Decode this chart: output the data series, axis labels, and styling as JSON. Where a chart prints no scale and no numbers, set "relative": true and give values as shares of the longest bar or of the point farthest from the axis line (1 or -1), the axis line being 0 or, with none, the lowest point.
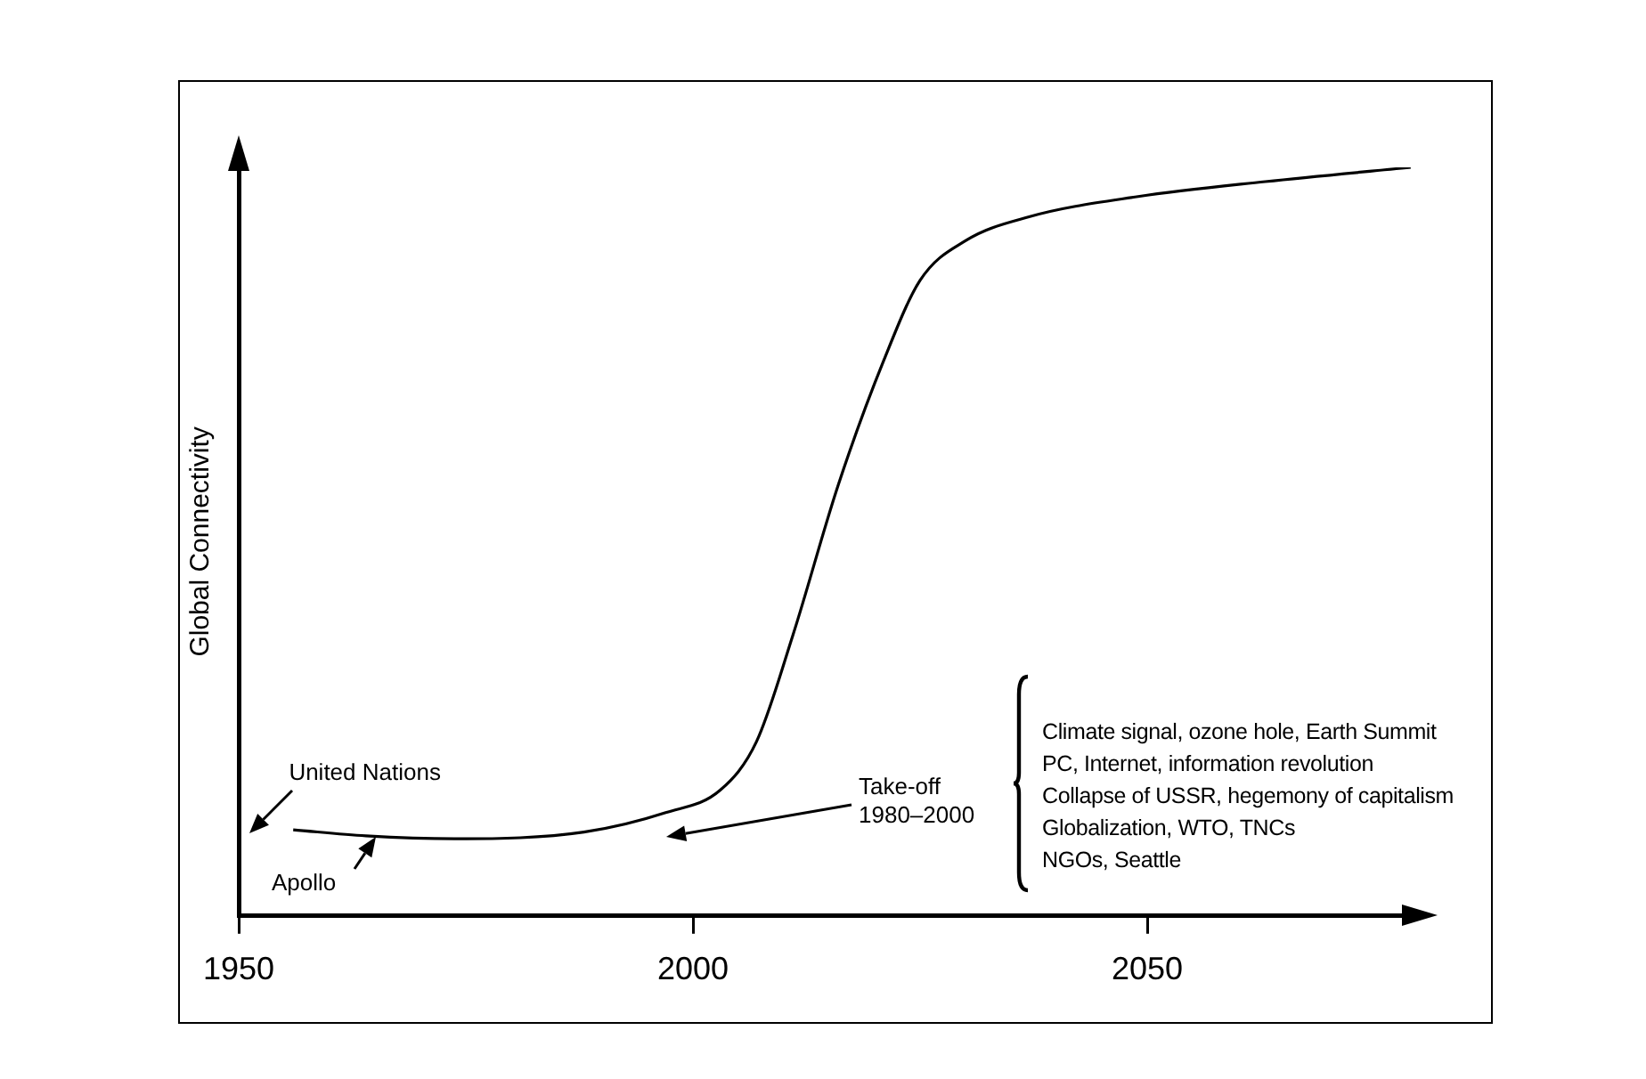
{
  "chart_data": {
    "type": "line",
    "relative": true,
    "ylabel": "Global Connectivity",
    "xlim": [
      1950,
      2080
    ],
    "xticks": [
      1950,
      2000,
      2050
    ],
    "grid": false,
    "legend": false,
    "marker": "none",
    "line_style": "solid",
    "series": [
      {
        "color": "#000000",
        "x": [
          1956,
          1964,
          1974,
          1988,
          1997,
          2003,
          2007,
          2011,
          2016,
          2021,
          2025,
          2030,
          2037,
          2049,
          2063,
          2079
        ],
        "values": [
          0.115,
          0.107,
          0.103,
          0.112,
          0.138,
          0.168,
          0.233,
          0.375,
          0.576,
          0.742,
          0.849,
          0.902,
          0.934,
          0.961,
          0.981,
          1
        ]
      }
    ],
    "annotations": [
      {
        "text": "United Nations",
        "x": 1952,
        "y": 0.12
      },
      {
        "text": "Apollo",
        "x": 1965,
        "y": 0.106
      },
      "Take-off\n1980–2000",
      "Climate signal, ozone hole, Earth Summit",
      "PC, Internet, information revolution",
      "Collapse of USSR, hegemony of capitalism",
      "Globalization, WTO, TNCs",
      "NGOs, Seattle"
    ]
  }
}
